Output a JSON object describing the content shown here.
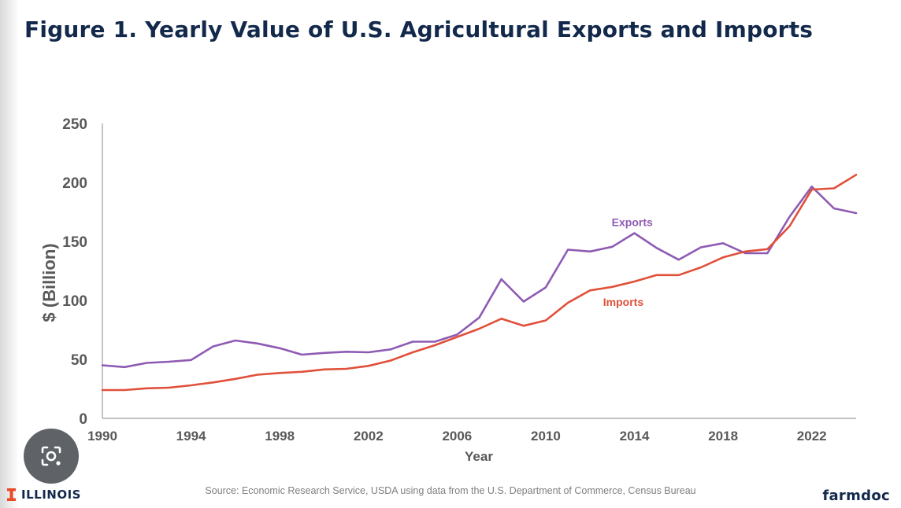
{
  "title": "Figure 1. Yearly Value of U.S. Agricultural Exports and Imports",
  "source": "Source: Economic Research Service, USDA using data from the U.S. Department of Commerce, Census Bureau",
  "logos": {
    "left": "ILLINOIS",
    "right": "farmdoc"
  },
  "overlay": {
    "icon": "camera-lens-icon"
  },
  "colors": {
    "title": "#13294b",
    "exports": "#8e5bb3",
    "imports": "#e0503a",
    "axis": "#595959"
  },
  "chart_data": {
    "type": "line",
    "xlabel": "Year",
    "ylabel": "$ (Billion)",
    "ylim": [
      0,
      250
    ],
    "xlim": [
      1990,
      2024
    ],
    "yticks": [
      0,
      50,
      100,
      150,
      200,
      250
    ],
    "xticks": [
      1990,
      1994,
      1998,
      2002,
      2006,
      2010,
      2014,
      2018,
      2022
    ],
    "x": [
      1990,
      1991,
      1992,
      1993,
      1994,
      1995,
      1996,
      1997,
      1998,
      1999,
      2000,
      2001,
      2002,
      2003,
      2004,
      2005,
      2006,
      2007,
      2008,
      2009,
      2010,
      2011,
      2012,
      2013,
      2014,
      2015,
      2016,
      2017,
      2018,
      2019,
      2020,
      2021,
      2022,
      2023,
      2024
    ],
    "series": [
      {
        "name": "Exports",
        "label": "Exports",
        "values": [
          45,
          43.5,
          47,
          48,
          49.5,
          61,
          66,
          63.5,
          59.5,
          54,
          55.5,
          56.5,
          56,
          58.5,
          65,
          65,
          71,
          85.5,
          118,
          99,
          111,
          143,
          141.5,
          145.5,
          157,
          144.5,
          134.5,
          145,
          148.5,
          140,
          140,
          171,
          196.5,
          178,
          174
        ]
      },
      {
        "name": "Imports",
        "label": "Imports",
        "values": [
          24,
          24,
          25.5,
          26,
          28,
          30.5,
          33.5,
          37,
          38.5,
          39.5,
          41.5,
          42,
          44.5,
          49,
          56,
          62,
          69,
          76,
          84.5,
          78.5,
          83,
          98,
          108.5,
          111.5,
          116,
          121.5,
          121.5,
          128,
          136.5,
          141.5,
          143.5,
          163,
          194,
          195,
          206.5
        ]
      }
    ]
  }
}
